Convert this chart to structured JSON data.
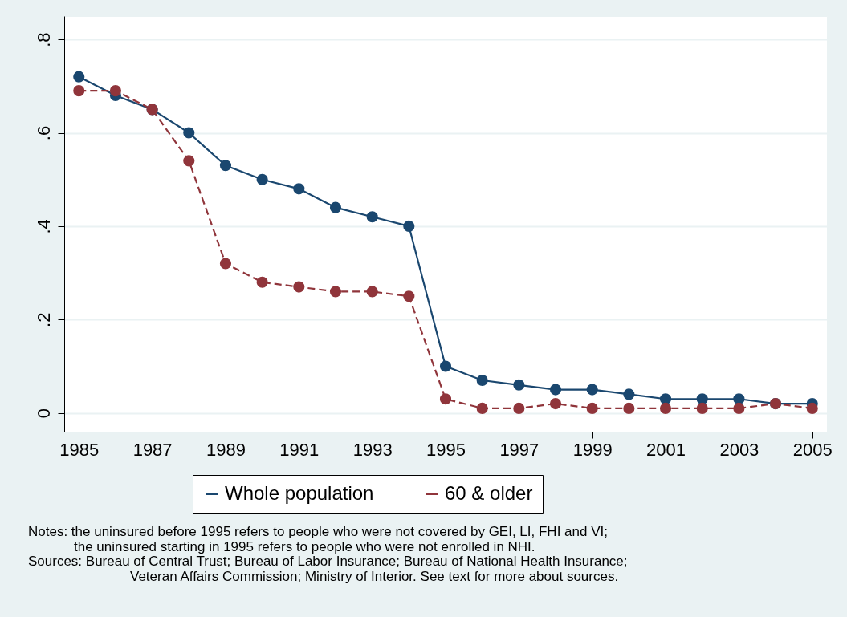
{
  "chart_data": {
    "type": "line",
    "x": [
      1985,
      1986,
      1987,
      1988,
      1989,
      1990,
      1991,
      1992,
      1993,
      1994,
      1995,
      1996,
      1997,
      1998,
      1999,
      2000,
      2001,
      2002,
      2003,
      2004,
      2005
    ],
    "series": [
      {
        "name": "Whole population",
        "color": "#1a476f",
        "line_style": "solid",
        "values": [
          0.72,
          0.68,
          0.65,
          0.6,
          0.53,
          0.5,
          0.48,
          0.44,
          0.42,
          0.4,
          0.1,
          0.07,
          0.06,
          0.05,
          0.05,
          0.04,
          0.03,
          0.03,
          0.03,
          0.02,
          0.02
        ]
      },
      {
        "name": "60 & older",
        "color": "#90353b",
        "line_style": "dashed",
        "values": [
          0.69,
          0.69,
          0.65,
          0.54,
          0.32,
          0.28,
          0.27,
          0.26,
          0.26,
          0.25,
          0.03,
          0.01,
          0.01,
          0.02,
          0.01,
          0.01,
          0.01,
          0.01,
          0.01,
          0.02,
          0.01
        ]
      }
    ],
    "xlim": [
      1984.6,
      2005.4
    ],
    "xticks": [
      1985,
      1987,
      1989,
      1991,
      1993,
      1995,
      1997,
      1999,
      2001,
      2003,
      2005
    ],
    "ylim": [
      -0.04,
      0.85
    ],
    "yticks": [
      {
        "value": 0,
        "label": "0"
      },
      {
        "value": 0.2,
        "label": ".2"
      },
      {
        "value": 0.4,
        "label": ".4"
      },
      {
        "value": 0.6,
        "label": ".6"
      },
      {
        "value": 0.8,
        "label": ".8"
      }
    ],
    "grid": "y",
    "legend": "bottom",
    "marker": "circle",
    "annotations": [
      "Notes: the uninsured before 1995 refers to people who were not covered by GEI, LI, FHI and VI;",
      "the uninsured starting in 1995 refers to people who were not enrolled in NHI.",
      "Sources: Bureau of Central Trust; Bureau of Labor Insurance; Bureau of National Health Insurance;",
      "Veteran Affairs Commission; Ministry of Interior. See text for more about sources."
    ]
  }
}
